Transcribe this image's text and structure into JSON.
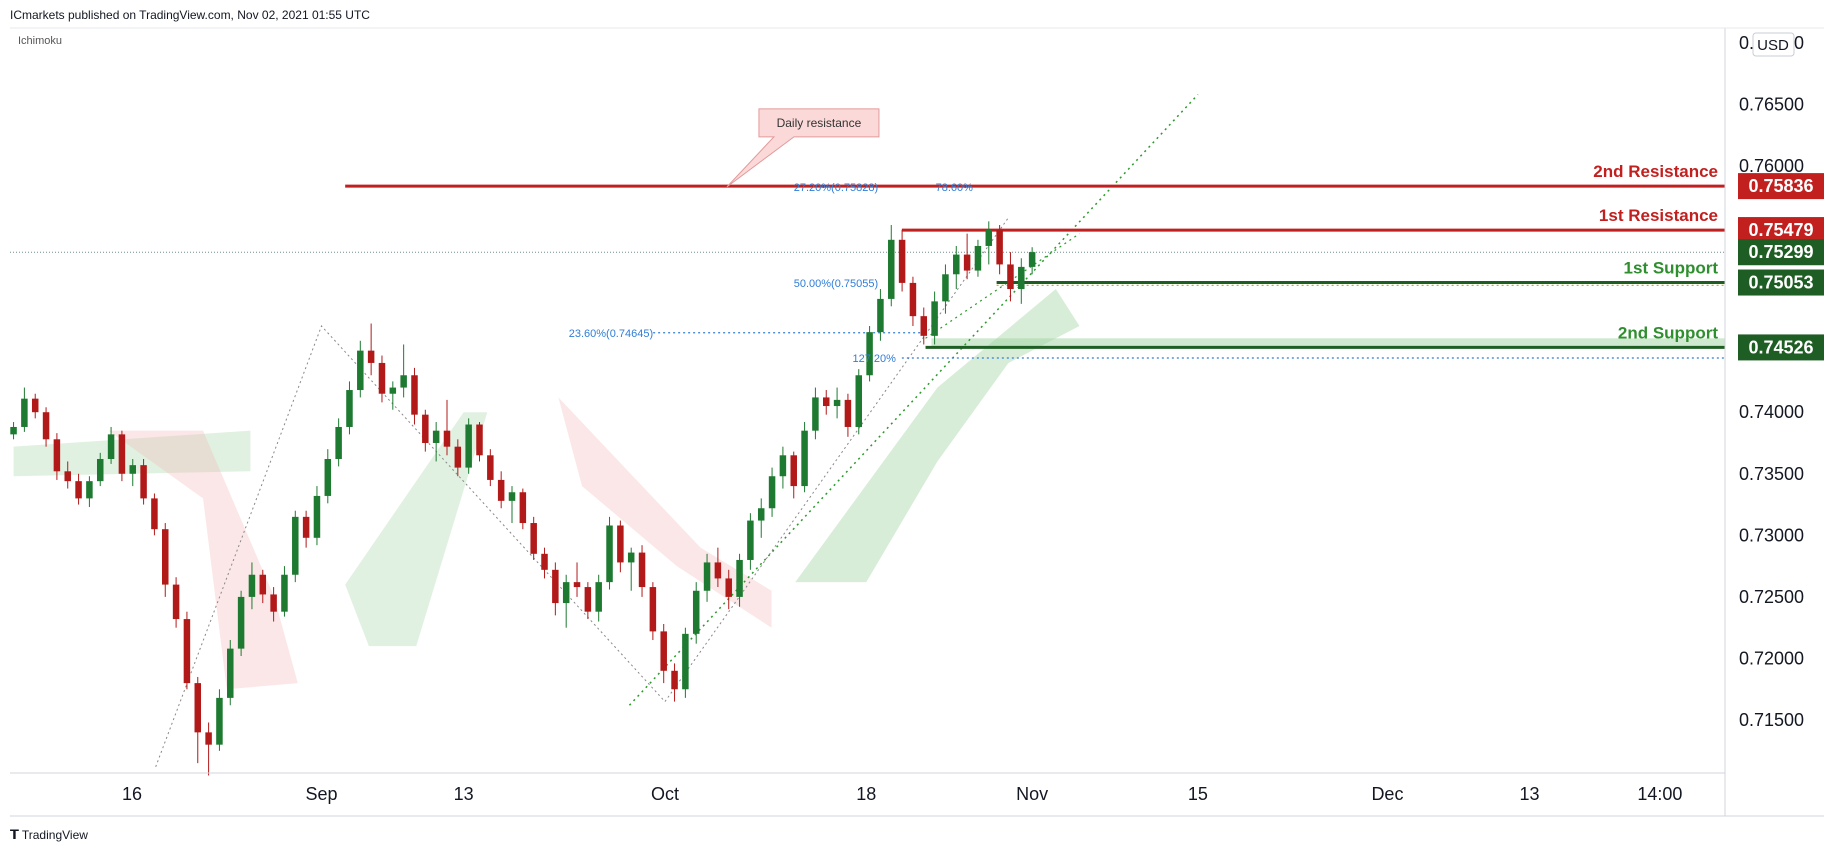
{
  "header": {
    "publisher_line": "ICmarkets published on TradingView.com, Nov 02, 2021 01:55 UTC",
    "indicator": "Ichimoku",
    "currency": "USD"
  },
  "footer": {
    "brand": "TradingView"
  },
  "chart_data": {
    "type": "candlestick",
    "symbol_currency": "USD",
    "y_axis": {
      "ylim": [
        0.7107,
        0.7712
      ],
      "ticks": [
        "0.77000",
        "0.76500",
        "0.76000",
        "0.75500",
        "0.75000",
        "0.74500",
        "0.74000",
        "0.73500",
        "0.73000",
        "0.72500",
        "0.72000",
        "0.71500"
      ]
    },
    "x_axis": {
      "ticks": [
        {
          "label": "16",
          "day": 16
        },
        {
          "label": "Sep",
          "day": 32
        },
        {
          "label": "13",
          "day": 44
        },
        {
          "label": "Oct",
          "day": 61
        },
        {
          "label": "18",
          "day": 78
        },
        {
          "label": "Nov",
          "day": 92
        },
        {
          "label": "15",
          "day": 106
        },
        {
          "label": "Dec",
          "day": 122
        },
        {
          "label": "13",
          "day": 134
        },
        {
          "label": "14:00",
          "day": 145
        }
      ],
      "xlim": [
        5.7,
        150.5
      ]
    },
    "levels": [
      {
        "name": "2nd Resistance",
        "value": 0.75836,
        "label": "0.75836",
        "kind": "resistance",
        "color": "#c21f1f",
        "start_day": 34
      },
      {
        "name": "1st Resistance",
        "value": 0.75479,
        "label": "0.75479",
        "kind": "resistance",
        "color": "#c21f1f",
        "start_day": 81
      },
      {
        "name": "1st Support",
        "value": 0.75053,
        "label": "0.75053",
        "kind": "support",
        "color": "#1e5d23",
        "start_day": 89
      },
      {
        "name": "2nd Support",
        "value": 0.74526,
        "label": "0.74526",
        "kind": "support",
        "color": "#1e5d23",
        "start_day": 83
      }
    ],
    "current_price": {
      "value": 0.75299,
      "label": "0.75299",
      "color": "#1e5d23"
    },
    "annotations": [
      {
        "text": "Daily resistance",
        "day": 74,
        "price": 0.7635
      }
    ],
    "fibonacci_labels": [
      {
        "text": "27.20%(0.75828)",
        "day": 79,
        "price": 0.7583
      },
      {
        "text": "78.60%",
        "day": 87,
        "price": 0.7583
      },
      {
        "text": "50.00%(0.75055)",
        "day": 79,
        "price": 0.7505
      },
      {
        "text": "23.60%(0.74645)",
        "day": 60,
        "price": 0.74645
      },
      {
        "text": "127.20%",
        "day": 80.5,
        "price": 0.7444
      }
    ],
    "colors": {
      "bull": "#1e7a31",
      "bear": "#b21a1a",
      "cloud_bull": "#a8d8a8",
      "cloud_bear": "#f4b9b9",
      "support_zone": "#9ed49f"
    },
    "candles": [
      [
        0.7382,
        0.7392,
        0.7378,
        0.7388
      ],
      [
        0.7388,
        0.742,
        0.7384,
        0.7411
      ],
      [
        0.7411,
        0.7415,
        0.7395,
        0.74
      ],
      [
        0.74,
        0.7404,
        0.7372,
        0.7378
      ],
      [
        0.7378,
        0.7383,
        0.7345,
        0.7352
      ],
      [
        0.7352,
        0.736,
        0.7338,
        0.7344
      ],
      [
        0.7344,
        0.735,
        0.7325,
        0.733
      ],
      [
        0.733,
        0.7348,
        0.7323,
        0.7344
      ],
      [
        0.7344,
        0.7367,
        0.734,
        0.7362
      ],
      [
        0.7362,
        0.7388,
        0.7358,
        0.7382
      ],
      [
        0.7382,
        0.7385,
        0.7344,
        0.735
      ],
      [
        0.735,
        0.7362,
        0.734,
        0.7357
      ],
      [
        0.7357,
        0.7362,
        0.7325,
        0.733
      ],
      [
        0.733,
        0.7334,
        0.73,
        0.7305
      ],
      [
        0.7305,
        0.731,
        0.725,
        0.726
      ],
      [
        0.726,
        0.7266,
        0.7225,
        0.7232
      ],
      [
        0.7232,
        0.7238,
        0.7175,
        0.718
      ],
      [
        0.718,
        0.7185,
        0.7115,
        0.714
      ],
      [
        0.714,
        0.7148,
        0.7105,
        0.713
      ],
      [
        0.713,
        0.7175,
        0.7125,
        0.7168
      ],
      [
        0.7168,
        0.7215,
        0.7162,
        0.7208
      ],
      [
        0.7208,
        0.7255,
        0.7202,
        0.725
      ],
      [
        0.725,
        0.7278,
        0.724,
        0.7268
      ],
      [
        0.7268,
        0.7272,
        0.7245,
        0.7252
      ],
      [
        0.7252,
        0.7258,
        0.723,
        0.7238
      ],
      [
        0.7238,
        0.7275,
        0.7234,
        0.7268
      ],
      [
        0.7268,
        0.732,
        0.7262,
        0.7315
      ],
      [
        0.7315,
        0.732,
        0.729,
        0.7298
      ],
      [
        0.7298,
        0.734,
        0.7292,
        0.7332
      ],
      [
        0.7332,
        0.737,
        0.7326,
        0.7362
      ],
      [
        0.7362,
        0.7395,
        0.7356,
        0.7388
      ],
      [
        0.7388,
        0.7425,
        0.7382,
        0.7418
      ],
      [
        0.7418,
        0.7458,
        0.7412,
        0.745
      ],
      [
        0.745,
        0.7472,
        0.743,
        0.744
      ],
      [
        0.744,
        0.7446,
        0.7408,
        0.7415
      ],
      [
        0.7415,
        0.7425,
        0.7402,
        0.742
      ],
      [
        0.742,
        0.7455,
        0.7412,
        0.743
      ],
      [
        0.743,
        0.7436,
        0.739,
        0.7398
      ],
      [
        0.7398,
        0.7402,
        0.7368,
        0.7375
      ],
      [
        0.7375,
        0.7392,
        0.736,
        0.7385
      ],
      [
        0.7385,
        0.741,
        0.7365,
        0.7372
      ],
      [
        0.7372,
        0.7378,
        0.7348,
        0.7355
      ],
      [
        0.7355,
        0.7395,
        0.735,
        0.739
      ],
      [
        0.739,
        0.7392,
        0.736,
        0.7365
      ],
      [
        0.7365,
        0.737,
        0.734,
        0.7345
      ],
      [
        0.7345,
        0.7352,
        0.7322,
        0.7328
      ],
      [
        0.7328,
        0.734,
        0.731,
        0.7335
      ],
      [
        0.7335,
        0.7338,
        0.7305,
        0.731
      ],
      [
        0.731,
        0.7315,
        0.728,
        0.7285
      ],
      [
        0.7285,
        0.729,
        0.7265,
        0.7272
      ],
      [
        0.7272,
        0.7278,
        0.7235,
        0.7245
      ],
      [
        0.7245,
        0.7268,
        0.7225,
        0.7262
      ],
      [
        0.7262,
        0.7278,
        0.725,
        0.7258
      ],
      [
        0.7258,
        0.7262,
        0.7232,
        0.7238
      ],
      [
        0.7238,
        0.7268,
        0.723,
        0.7262
      ],
      [
        0.7262,
        0.7315,
        0.7256,
        0.7308
      ],
      [
        0.7308,
        0.7312,
        0.727,
        0.7278
      ],
      [
        0.7278,
        0.729,
        0.7255,
        0.7286
      ],
      [
        0.7286,
        0.7292,
        0.725,
        0.7258
      ],
      [
        0.7258,
        0.7262,
        0.7215,
        0.7222
      ],
      [
        0.7222,
        0.7228,
        0.718,
        0.719
      ],
      [
        0.719,
        0.7196,
        0.7165,
        0.7175
      ],
      [
        0.7175,
        0.7225,
        0.7168,
        0.722
      ],
      [
        0.722,
        0.7262,
        0.7212,
        0.7255
      ],
      [
        0.7255,
        0.7285,
        0.7246,
        0.7278
      ],
      [
        0.7278,
        0.729,
        0.7258,
        0.7265
      ],
      [
        0.7265,
        0.7272,
        0.724,
        0.725
      ],
      [
        0.725,
        0.7285,
        0.7242,
        0.728
      ],
      [
        0.728,
        0.7318,
        0.7272,
        0.7312
      ],
      [
        0.7312,
        0.733,
        0.7298,
        0.7322
      ],
      [
        0.7322,
        0.7355,
        0.7315,
        0.7348
      ],
      [
        0.7348,
        0.7372,
        0.7338,
        0.7365
      ],
      [
        0.7365,
        0.7368,
        0.733,
        0.734
      ],
      [
        0.734,
        0.7392,
        0.7335,
        0.7385
      ],
      [
        0.7385,
        0.742,
        0.7378,
        0.7412
      ],
      [
        0.7412,
        0.7418,
        0.7398,
        0.7405
      ],
      [
        0.7405,
        0.742,
        0.7395,
        0.741
      ],
      [
        0.741,
        0.7415,
        0.738,
        0.7388
      ],
      [
        0.7388,
        0.7435,
        0.7382,
        0.743
      ],
      [
        0.743,
        0.747,
        0.7425,
        0.7465
      ],
      [
        0.7465,
        0.75,
        0.7458,
        0.7492
      ],
      [
        0.7492,
        0.7552,
        0.7486,
        0.754
      ],
      [
        0.754,
        0.7548,
        0.7498,
        0.7505
      ],
      [
        0.7505,
        0.751,
        0.747,
        0.7478
      ],
      [
        0.7478,
        0.7485,
        0.7455,
        0.7462
      ],
      [
        0.7462,
        0.7498,
        0.7455,
        0.749
      ],
      [
        0.749,
        0.752,
        0.748,
        0.7512
      ],
      [
        0.7512,
        0.7535,
        0.75,
        0.7528
      ],
      [
        0.7528,
        0.7545,
        0.7508,
        0.7515
      ],
      [
        0.7515,
        0.754,
        0.751,
        0.7535
      ],
      [
        0.7535,
        0.7555,
        0.752,
        0.7548
      ],
      [
        0.7548,
        0.7552,
        0.7512,
        0.752
      ],
      [
        0.752,
        0.753,
        0.749,
        0.75
      ],
      [
        0.75,
        0.7525,
        0.7488,
        0.7518
      ],
      [
        0.7518,
        0.7534,
        0.7512,
        0.753
      ]
    ]
  }
}
